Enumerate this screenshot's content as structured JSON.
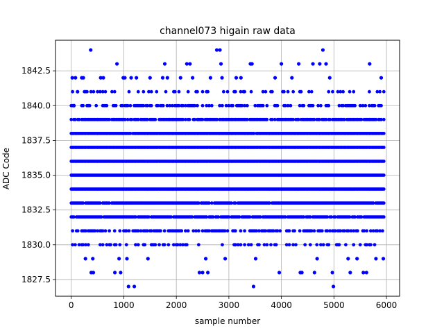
{
  "chart_data": {
    "type": "scatter",
    "title": "channel073 higain raw data",
    "xlabel": "sample number",
    "ylabel": "ADC Code",
    "xlim": [
      -300,
      6250
    ],
    "ylim": [
      1826.3,
      1844.7
    ],
    "x_ticks": [
      0,
      1000,
      2000,
      3000,
      4000,
      5000,
      6000
    ],
    "y_ticks": [
      1827.5,
      1830.0,
      1832.5,
      1835.0,
      1837.5,
      1840.0,
      1842.5
    ],
    "y_tick_labels": [
      "1827.5",
      "1830.0",
      "1832.5",
      "1835.0",
      "1837.5",
      "1840.0",
      "1842.5"
    ],
    "grid": true,
    "marker_color": "#0000ff",
    "x_range": [
      0,
      5950
    ],
    "levels": [
      {
        "y": 1833,
        "coverage": 0.97
      },
      {
        "y": 1834,
        "coverage": 1.0
      },
      {
        "y": 1835,
        "coverage": 1.0
      },
      {
        "y": 1836,
        "coverage": 1.0
      },
      {
        "y": 1837,
        "coverage": 1.0
      },
      {
        "y": 1838,
        "coverage": 0.98
      },
      {
        "y": 1832,
        "coverage": 0.88
      },
      {
        "y": 1839,
        "coverage": 0.82
      },
      {
        "y": 1831,
        "coverage": 0.6
      },
      {
        "y": 1840,
        "coverage": 0.52
      },
      {
        "y": 1830,
        "coverage": 0.28
      },
      {
        "y": 1841,
        "coverage": 0.24
      }
    ],
    "sparse_points": [
      {
        "x": 20,
        "y": 1842
      },
      {
        "x": 50,
        "y": 1840
      },
      {
        "x": 80,
        "y": 1842
      },
      {
        "x": 120,
        "y": 1841
      },
      {
        "x": 200,
        "y": 1842
      },
      {
        "x": 230,
        "y": 1842
      },
      {
        "x": 270,
        "y": 1829
      },
      {
        "x": 370,
        "y": 1844
      },
      {
        "x": 380,
        "y": 1828
      },
      {
        "x": 410,
        "y": 1829
      },
      {
        "x": 420,
        "y": 1828
      },
      {
        "x": 560,
        "y": 1842
      },
      {
        "x": 610,
        "y": 1842
      },
      {
        "x": 830,
        "y": 1828
      },
      {
        "x": 870,
        "y": 1843
      },
      {
        "x": 910,
        "y": 1829
      },
      {
        "x": 940,
        "y": 1828
      },
      {
        "x": 990,
        "y": 1842
      },
      {
        "x": 1020,
        "y": 1842
      },
      {
        "x": 1060,
        "y": 1829
      },
      {
        "x": 1090,
        "y": 1827
      },
      {
        "x": 1140,
        "y": 1842
      },
      {
        "x": 1200,
        "y": 1827
      },
      {
        "x": 1240,
        "y": 1842
      },
      {
        "x": 1460,
        "y": 1829
      },
      {
        "x": 1500,
        "y": 1842
      },
      {
        "x": 1740,
        "y": 1842
      },
      {
        "x": 1780,
        "y": 1843
      },
      {
        "x": 1830,
        "y": 1842
      },
      {
        "x": 2080,
        "y": 1842
      },
      {
        "x": 2200,
        "y": 1843
      },
      {
        "x": 2260,
        "y": 1843
      },
      {
        "x": 2310,
        "y": 1842
      },
      {
        "x": 2440,
        "y": 1828
      },
      {
        "x": 2500,
        "y": 1828
      },
      {
        "x": 2560,
        "y": 1829
      },
      {
        "x": 2600,
        "y": 1828
      },
      {
        "x": 2650,
        "y": 1842
      },
      {
        "x": 2770,
        "y": 1844
      },
      {
        "x": 2830,
        "y": 1844
      },
      {
        "x": 2850,
        "y": 1843
      },
      {
        "x": 2870,
        "y": 1842
      },
      {
        "x": 2930,
        "y": 1829
      },
      {
        "x": 3140,
        "y": 1842
      },
      {
        "x": 3230,
        "y": 1842
      },
      {
        "x": 3410,
        "y": 1843
      },
      {
        "x": 3440,
        "y": 1843
      },
      {
        "x": 3470,
        "y": 1827
      },
      {
        "x": 3510,
        "y": 1829
      },
      {
        "x": 3880,
        "y": 1842
      },
      {
        "x": 3960,
        "y": 1828
      },
      {
        "x": 4000,
        "y": 1843
      },
      {
        "x": 4200,
        "y": 1842
      },
      {
        "x": 4330,
        "y": 1843
      },
      {
        "x": 4360,
        "y": 1828
      },
      {
        "x": 4390,
        "y": 1828
      },
      {
        "x": 4600,
        "y": 1843
      },
      {
        "x": 4630,
        "y": 1828
      },
      {
        "x": 4680,
        "y": 1829
      },
      {
        "x": 4730,
        "y": 1843
      },
      {
        "x": 4790,
        "y": 1844
      },
      {
        "x": 4850,
        "y": 1843
      },
      {
        "x": 4920,
        "y": 1842
      },
      {
        "x": 4970,
        "y": 1828
      },
      {
        "x": 4990,
        "y": 1827
      },
      {
        "x": 5270,
        "y": 1829
      },
      {
        "x": 5310,
        "y": 1828
      },
      {
        "x": 5440,
        "y": 1829
      },
      {
        "x": 5560,
        "y": 1828
      },
      {
        "x": 5620,
        "y": 1828
      },
      {
        "x": 5680,
        "y": 1843
      },
      {
        "x": 5800,
        "y": 1829
      },
      {
        "x": 5900,
        "y": 1842
      },
      {
        "x": 5940,
        "y": 1829
      }
    ]
  }
}
